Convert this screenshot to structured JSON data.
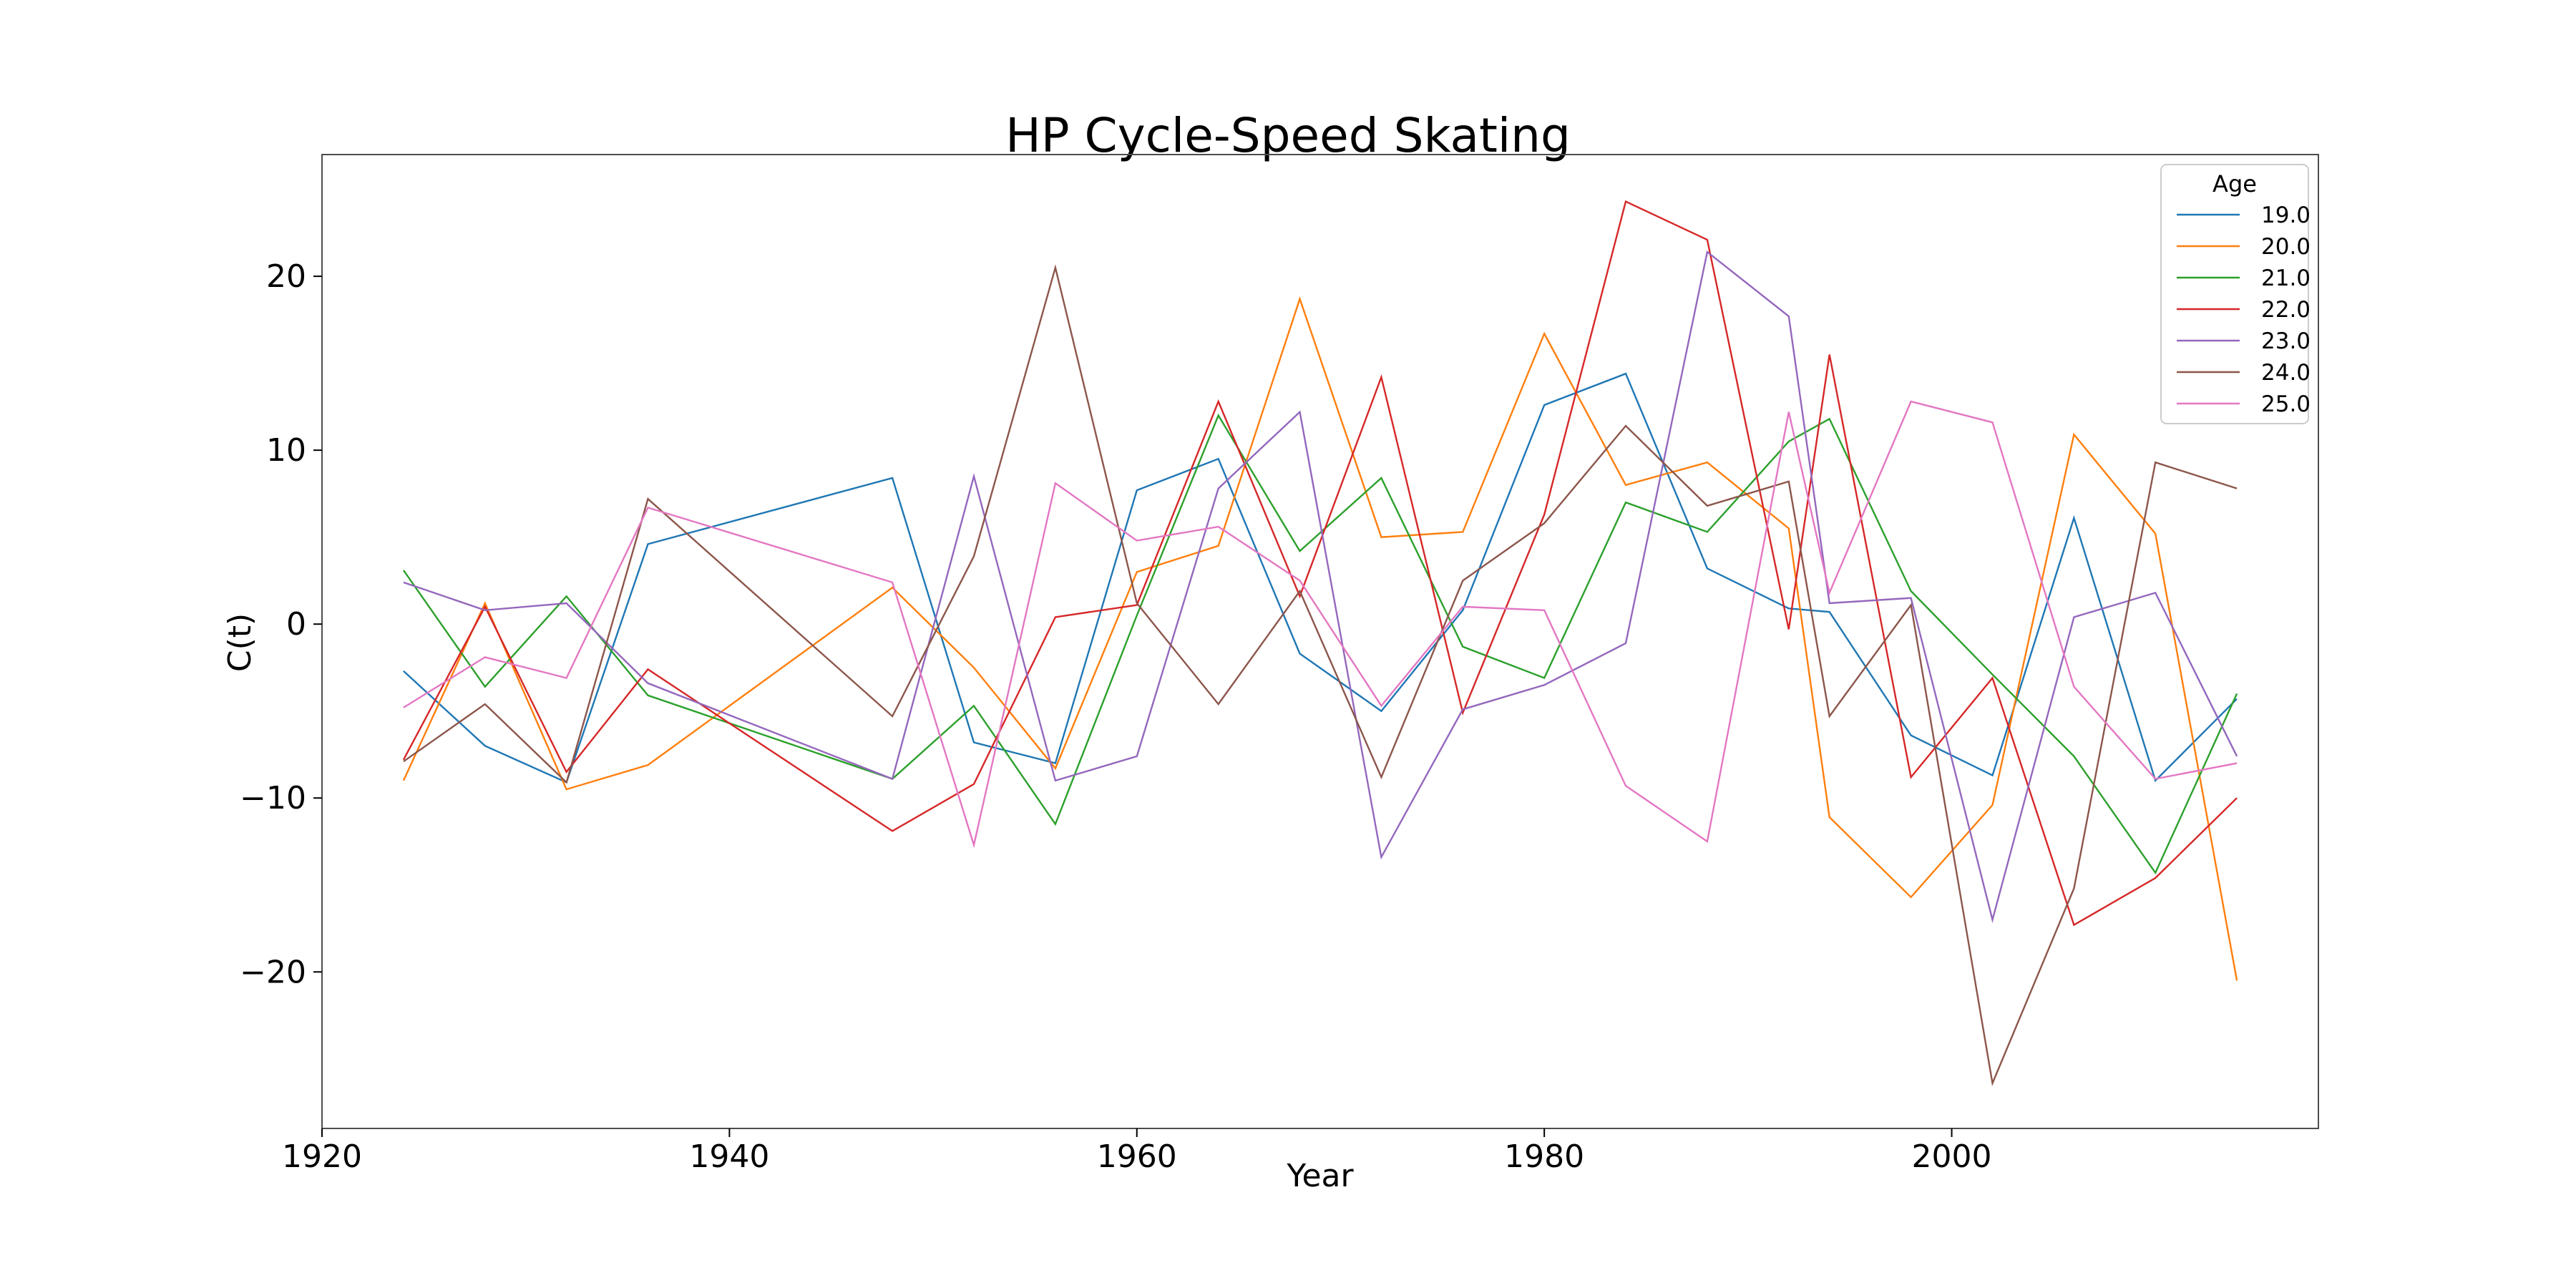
{
  "chart_data": {
    "type": "line",
    "title": "HP Cycle-Speed Skating",
    "xlabel": "Year",
    "ylabel": "C(t)",
    "xlim": [
      1920,
      2018
    ],
    "ylim": [
      -29,
      27
    ],
    "xticks": [
      1920,
      1940,
      1960,
      1980,
      2000
    ],
    "yticks": [
      -20,
      -10,
      0,
      10,
      20
    ],
    "ytick_labels": [
      "−20",
      "−10",
      "0",
      "10",
      "20"
    ],
    "grid": false,
    "legend": {
      "title": "Age",
      "placement": "top-right"
    },
    "series": [
      {
        "name": "19.0",
        "color": "#1f77b4",
        "x": [
          1924,
          1928,
          1932,
          1936,
          1948,
          1952,
          1956,
          1960,
          1964,
          1968,
          1972,
          1976,
          1980,
          1984,
          1988,
          1992,
          1994,
          1998,
          2002,
          2006,
          2010,
          2014
        ],
        "y": [
          -2.7,
          -7.0,
          -9.1,
          4.6,
          8.4,
          -6.8,
          -8.0,
          7.7,
          9.5,
          -1.7,
          -5.0,
          0.8,
          12.6,
          14.4,
          3.2,
          0.9,
          0.7,
          -6.4,
          -8.7,
          6.1,
          -9.0,
          -4.3
        ]
      },
      {
        "name": "20.0",
        "color": "#ff7f0e",
        "x": [
          1924,
          1928,
          1932,
          1936,
          1948,
          1952,
          1956,
          1960,
          1964,
          1968,
          1972,
          1976,
          1980,
          1984,
          1988,
          1992,
          1994,
          1998,
          2002,
          2006,
          2010,
          2014
        ],
        "y": [
          -9.0,
          1.2,
          -9.5,
          -8.1,
          2.1,
          -2.5,
          -8.3,
          3.0,
          4.5,
          18.7,
          5.0,
          5.3,
          16.7,
          8.0,
          9.3,
          5.5,
          -11.1,
          -15.7,
          -10.4,
          10.9,
          5.2,
          -20.5
        ]
      },
      {
        "name": "21.0",
        "color": "#2ca02c",
        "x": [
          1924,
          1928,
          1932,
          1936,
          1948,
          1952,
          1956,
          1960,
          1964,
          1968,
          1972,
          1976,
          1980,
          1984,
          1988,
          1992,
          1994,
          1998,
          2002,
          2006,
          2010,
          2014
        ],
        "y": [
          3.1,
          -3.6,
          1.6,
          -4.1,
          -8.9,
          -4.7,
          -11.5,
          0.5,
          12.0,
          4.2,
          8.4,
          -1.3,
          -3.1,
          7.0,
          5.3,
          10.5,
          11.8,
          1.9,
          -2.9,
          -7.6,
          -14.3,
          -4.0
        ]
      },
      {
        "name": "22.0",
        "color": "#d62728",
        "x": [
          1924,
          1928,
          1932,
          1936,
          1948,
          1952,
          1956,
          1960,
          1964,
          1968,
          1972,
          1976,
          1980,
          1984,
          1988,
          1992,
          1994,
          1998,
          2002,
          2006,
          2010,
          2014
        ],
        "y": [
          -7.8,
          1.0,
          -8.5,
          -2.6,
          -11.9,
          -9.2,
          0.4,
          1.1,
          12.8,
          1.6,
          14.2,
          -5.1,
          6.3,
          24.3,
          22.1,
          -0.3,
          15.5,
          -8.8,
          -3.1,
          -17.3,
          -14.6,
          -10.0
        ]
      },
      {
        "name": "23.0",
        "color": "#9467bd",
        "x": [
          1924,
          1928,
          1932,
          1936,
          1948,
          1952,
          1956,
          1960,
          1964,
          1968,
          1972,
          1976,
          1980,
          1984,
          1988,
          1992,
          1994,
          1998,
          2002,
          2006,
          2010,
          2014
        ],
        "y": [
          2.4,
          0.8,
          1.2,
          -3.4,
          -8.9,
          8.5,
          -9.0,
          -7.6,
          7.8,
          12.2,
          -13.4,
          -4.9,
          -3.5,
          -1.1,
          21.4,
          17.7,
          1.2,
          1.5,
          -17.0,
          0.4,
          1.8,
          -7.6
        ]
      },
      {
        "name": "24.0",
        "color": "#8c564b",
        "x": [
          1924,
          1928,
          1932,
          1936,
          1948,
          1952,
          1956,
          1960,
          1964,
          1968,
          1972,
          1976,
          1980,
          1984,
          1988,
          1992,
          1994,
          1998,
          2002,
          2006,
          2010,
          2014
        ],
        "y": [
          -7.9,
          -4.6,
          -9.1,
          7.2,
          -5.3,
          3.9,
          20.5,
          1.2,
          -4.6,
          1.9,
          -8.8,
          2.5,
          5.8,
          11.4,
          6.8,
          8.2,
          -5.3,
          1.1,
          -26.4,
          -15.2,
          9.3,
          7.8
        ]
      },
      {
        "name": "25.0",
        "color": "#e377c2",
        "x": [
          1924,
          1928,
          1932,
          1936,
          1948,
          1952,
          1956,
          1960,
          1964,
          1968,
          1972,
          1976,
          1980,
          1984,
          1988,
          1992,
          1994,
          1998,
          2002,
          2006,
          2010,
          2014
        ],
        "y": [
          -4.8,
          -1.9,
          -3.1,
          6.7,
          2.4,
          -12.7,
          8.1,
          4.8,
          5.6,
          2.5,
          -4.7,
          1.0,
          0.8,
          -9.3,
          -12.5,
          12.2,
          1.8,
          12.8,
          11.6,
          -3.6,
          -8.9,
          -8.0
        ]
      }
    ]
  }
}
